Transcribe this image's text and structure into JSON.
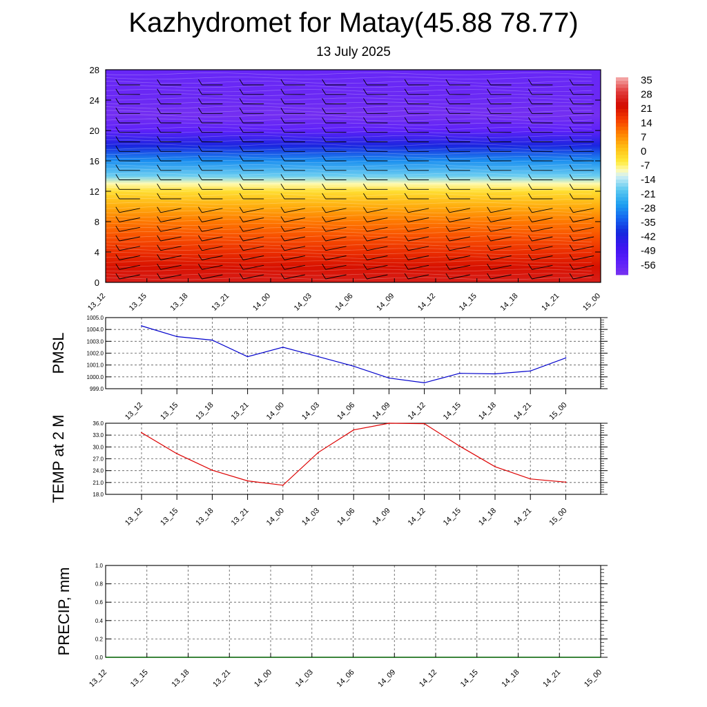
{
  "title": "Kazhydromet for Matay(45.88 78.77)",
  "subtitle": "13 July 2025",
  "colors": {
    "pmsl_line": "#0000cc",
    "temp_line": "#dd0000",
    "precip_line": "#006400",
    "grid": "#555555"
  },
  "chart_data": [
    {
      "type": "heatmap",
      "name": "temperature-cross-section",
      "x_tick_labels": [
        "13_12",
        "13_15",
        "13_18",
        "13_21",
        "14_00",
        "14_03",
        "14_06",
        "14_09",
        "14_12",
        "14_15",
        "14_18",
        "14_21",
        "15_00"
      ],
      "y_ticks": [
        0,
        4,
        8,
        12,
        16,
        20,
        24,
        28
      ],
      "ylim": [
        0,
        28
      ],
      "colorbar": {
        "tick_labels": [
          "35",
          "28",
          "21",
          "14",
          "7",
          "0",
          "-7",
          "-14",
          "-21",
          "-28",
          "-35",
          "-42",
          "-49",
          "-56"
        ],
        "range": [
          -63,
          35
        ]
      },
      "profile": [
        {
          "y": 0,
          "value": 24
        },
        {
          "y": 2,
          "value": 20
        },
        {
          "y": 4,
          "value": 16
        },
        {
          "y": 6,
          "value": 12
        },
        {
          "y": 8,
          "value": 8
        },
        {
          "y": 10,
          "value": 2
        },
        {
          "y": 12,
          "value": -5
        },
        {
          "y": 13,
          "value": -11
        },
        {
          "y": 14,
          "value": -20
        },
        {
          "y": 16,
          "value": -30
        },
        {
          "y": 18,
          "value": -43
        },
        {
          "y": 20,
          "value": -57
        },
        {
          "y": 22,
          "value": -62
        },
        {
          "y": 24,
          "value": -60
        },
        {
          "y": 28,
          "value": -59
        }
      ]
    },
    {
      "type": "line",
      "ylabel": "PMSL",
      "categories": [
        "13_12",
        "13_15",
        "13_18",
        "13_21",
        "14_00",
        "14_03",
        "14_06",
        "14_09",
        "14_12",
        "14_15",
        "14_18",
        "14_21",
        "15_00"
      ],
      "values": [
        1004.3,
        1003.4,
        1003.1,
        1001.7,
        1002.5,
        1001.7,
        1000.9,
        999.9,
        999.5,
        1000.3,
        1000.25,
        1000.5,
        1001.6
      ],
      "y_tick_labels": [
        "999.0",
        "1000.0",
        "1001.0",
        "1002.0",
        "1003.0",
        "1004.0",
        "1005.0"
      ],
      "ylim": [
        999,
        1005
      ]
    },
    {
      "type": "line",
      "ylabel": "TEMP at 2 M",
      "categories": [
        "13_12",
        "13_15",
        "13_18",
        "13_21",
        "14_00",
        "14_03",
        "14_06",
        "14_09",
        "14_12",
        "14_15",
        "14_18",
        "14_21",
        "15_00"
      ],
      "values": [
        33.6,
        28.3,
        24.1,
        21.4,
        20.3,
        28.6,
        34.3,
        36.0,
        35.9,
        30.2,
        25.0,
        21.9,
        21.1
      ],
      "y_tick_labels": [
        "18.0",
        "21.0",
        "24.0",
        "27.0",
        "30.0",
        "33.0",
        "36.0"
      ],
      "ylim": [
        18,
        36
      ]
    },
    {
      "type": "line",
      "ylabel": "PRECIP, mm",
      "categories": [
        "13_12",
        "13_15",
        "13_18",
        "13_21",
        "14_00",
        "14_03",
        "14_06",
        "14_09",
        "14_12",
        "14_15",
        "14_18",
        "14_21",
        "15_00"
      ],
      "values": [
        0,
        0,
        0,
        0,
        0,
        0,
        0,
        0,
        0,
        0,
        0,
        0,
        0
      ],
      "y_tick_labels": [
        "0.0",
        "0.2",
        "0.4",
        "0.6",
        "0.8",
        "1.0"
      ],
      "ylim": [
        0,
        1
      ]
    }
  ]
}
